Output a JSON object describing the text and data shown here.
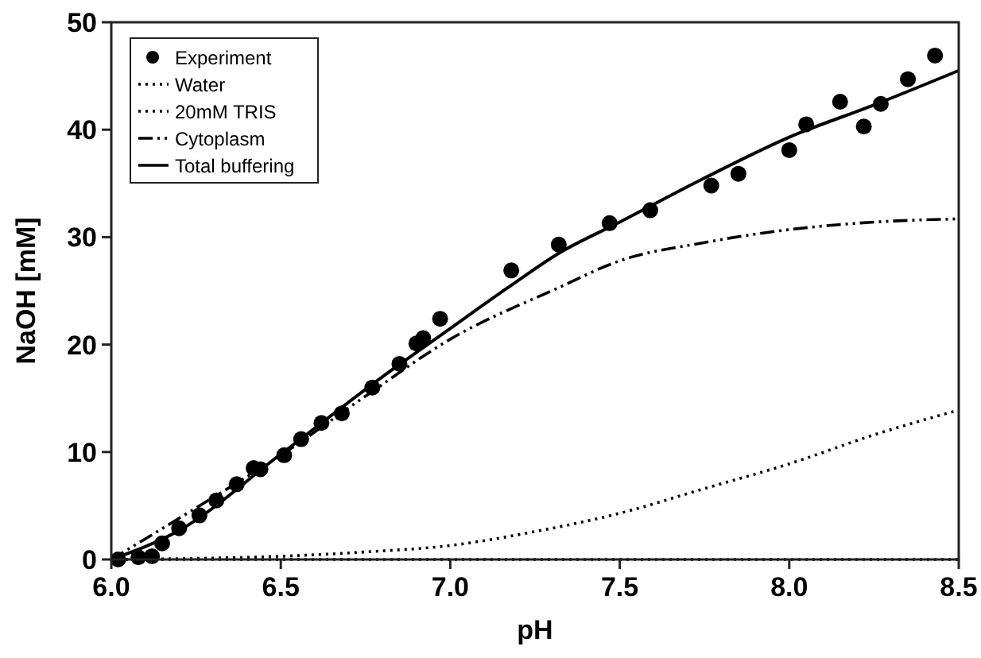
{
  "chart_data": {
    "type": "line",
    "xlabel": "pH",
    "ylabel": "NaOH [mM]",
    "xlim": [
      6.0,
      8.5
    ],
    "xticks": [
      {
        "value": 6.0,
        "label": "6.0"
      },
      {
        "value": 6.5,
        "label": "6.5"
      },
      {
        "value": 7.0,
        "label": "7.0"
      },
      {
        "value": 7.5,
        "label": "7.5"
      },
      {
        "value": 8.0,
        "label": "8.0"
      },
      {
        "value": 8.5,
        "label": "8.5"
      }
    ],
    "ylim": [
      0,
      50
    ],
    "yticks": [
      0,
      10,
      20,
      30,
      40,
      50
    ],
    "grid": false,
    "legend": "top left",
    "series": [
      {
        "name": "Experiment",
        "type": "scatter",
        "marker": "circle",
        "color": "#000000",
        "x": [
          6.02,
          6.08,
          6.12,
          6.15,
          6.2,
          6.26,
          6.31,
          6.37,
          6.42,
          6.44,
          6.51,
          6.56,
          6.62,
          6.68,
          6.77,
          6.85,
          6.9,
          6.92,
          6.97,
          7.18,
          7.32,
          7.47,
          7.59,
          7.77,
          7.85,
          8.0,
          8.05,
          8.15,
          8.22,
          8.27,
          8.35,
          8.43
        ],
        "values": [
          0,
          0.2,
          0.3,
          1.5,
          2.9,
          4.1,
          5.5,
          7.0,
          8.5,
          8.4,
          9.7,
          11.2,
          12.7,
          13.6,
          16.0,
          18.2,
          20.1,
          20.6,
          22.4,
          26.9,
          29.3,
          31.3,
          32.5,
          34.8,
          35.9,
          38.1,
          40.5,
          42.6,
          40.3,
          42.4,
          44.7,
          46.9
        ]
      },
      {
        "name": "Water",
        "line_style": "dotted",
        "color": "#000000",
        "x": [
          6.0,
          6.5,
          7.0,
          7.5,
          8.0,
          8.5
        ],
        "values": [
          0,
          0,
          0,
          0,
          0,
          0
        ]
      },
      {
        "name": "20mM TRIS",
        "line_style": "dotted",
        "color": "#000000",
        "x": [
          6.0,
          6.25,
          6.5,
          6.75,
          7.0,
          7.25,
          7.5,
          7.75,
          8.0,
          8.25,
          8.5
        ],
        "values": [
          0,
          0.1,
          0.3,
          0.7,
          1.3,
          2.6,
          4.3,
          6.6,
          8.9,
          11.6,
          13.9
        ]
      },
      {
        "name": "Cytoplasm",
        "line_style": "dashed",
        "color": "#000000",
        "x": [
          6.0,
          6.25,
          6.5,
          6.75,
          7.0,
          7.32,
          7.5,
          7.75,
          8.0,
          8.25,
          8.5
        ],
        "values": [
          0,
          4.8,
          9.7,
          15.2,
          20.5,
          25.3,
          27.8,
          29.5,
          30.7,
          31.4,
          31.7
        ]
      },
      {
        "name": "Total buffering",
        "line_style": "solid",
        "color": "#000000",
        "x": [
          6.0,
          6.2,
          6.5,
          6.8,
          7.0,
          7.17,
          7.32,
          7.5,
          7.75,
          8.0,
          8.25,
          8.5
        ],
        "values": [
          0,
          2.7,
          9.8,
          17.0,
          21.5,
          25.3,
          28.5,
          31.4,
          35.5,
          39.3,
          42.3,
          45.5
        ]
      }
    ]
  }
}
